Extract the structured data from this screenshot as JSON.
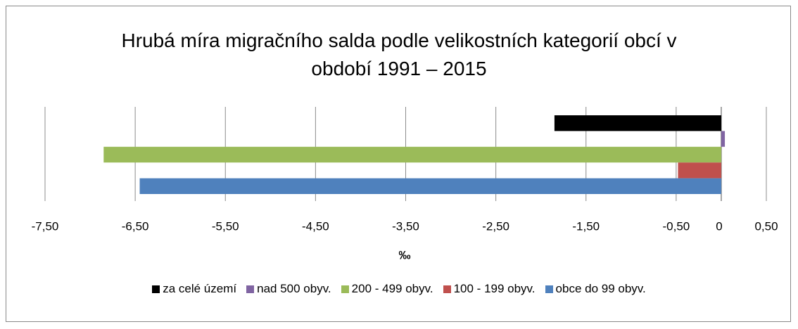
{
  "chart_data": {
    "type": "hbar",
    "title": "Hrubá míra migračního salda podle velikostních kategorií obcí v období 1991 – 2015",
    "xlabel": "‰",
    "categories": [
      null
    ],
    "series": [
      {
        "name": "za celé území",
        "color": "#000000",
        "values": [
          -1.85
        ]
      },
      {
        "name": "nad 500 obyv.",
        "color": "#8064a2",
        "values": [
          0.04
        ]
      },
      {
        "name": "200 - 499 obyv.",
        "color": "#9bbb59",
        "values": [
          -6.85
        ]
      },
      {
        "name": "100 - 199 obyv.",
        "color": "#c0504d",
        "values": [
          -0.48
        ]
      },
      {
        "name": "obce do 99 obyv.",
        "color": "#4f81bd",
        "values": [
          -6.45
        ]
      }
    ],
    "xlim": [
      -7.5,
      0.5
    ],
    "xticks": [
      {
        "value": -7.5,
        "label": "-7,50"
      },
      {
        "value": -6.5,
        "label": "-6,50"
      },
      {
        "value": -5.5,
        "label": "-5,50"
      },
      {
        "value": -4.5,
        "label": "-4,50"
      },
      {
        "value": -3.5,
        "label": "-3,50"
      },
      {
        "value": -2.5,
        "label": "-2,50"
      },
      {
        "value": -1.5,
        "label": "-1,50"
      },
      {
        "value": -0.5,
        "label": "-0,50"
      },
      0,
      {
        "value": 0.5,
        "label": "0,50"
      }
    ],
    "grid": true,
    "legend": "bottom"
  }
}
